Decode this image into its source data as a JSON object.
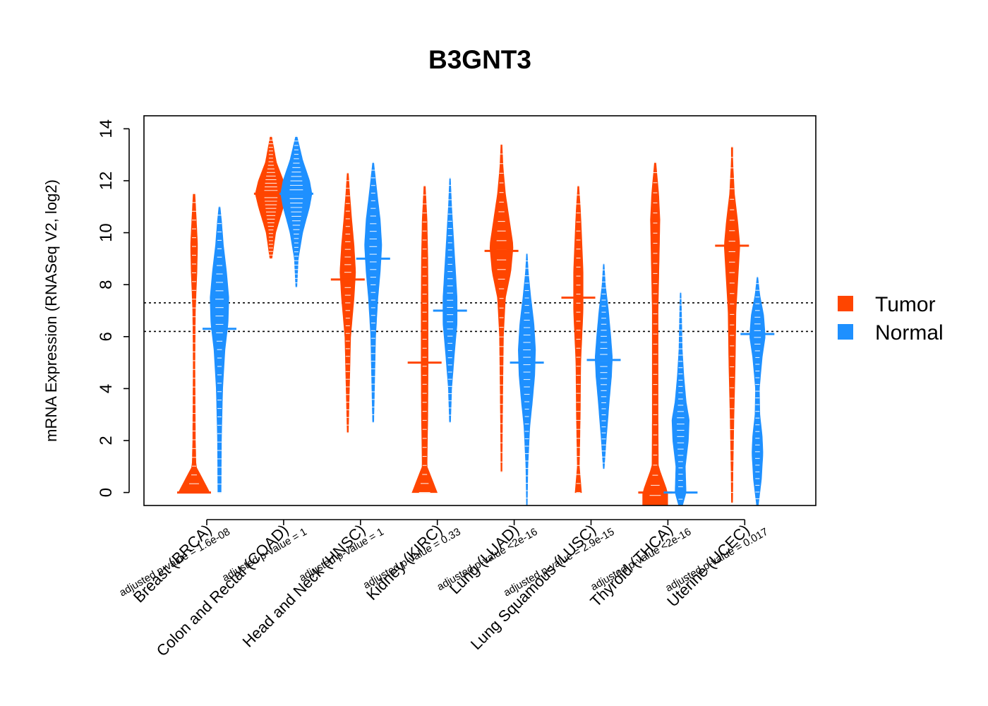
{
  "chart_data": {
    "type": "beanplot",
    "title": "B3GNT3",
    "ylabel": "mRNA Expression (RNASeq V2, log2)",
    "ylim": [
      -0.5,
      14.5
    ],
    "yticks": [
      0,
      2,
      4,
      6,
      8,
      10,
      12,
      14
    ],
    "reference_lines": [
      7.3,
      6.2
    ],
    "colors": {
      "Tumor": "#ff4500",
      "Normal": "#1e90ff"
    },
    "legend": {
      "placement": "right",
      "entries": [
        {
          "label": "Tumor",
          "color": "#ff4500"
        },
        {
          "label": "Normal",
          "color": "#1e90ff"
        }
      ]
    },
    "categories": [
      {
        "name": "Breast (BRCA)",
        "pvalue": "adjusted p-value = 1.6e-08"
      },
      {
        "name": "Colon and Rectal (COAD)",
        "pvalue": "adjusted p-value = 1"
      },
      {
        "name": "Head and Neck (HNSC)",
        "pvalue": "adjusted p-value = 1"
      },
      {
        "name": "Kidney (KIRC)",
        "pvalue": "adjusted p-value = 0.33"
      },
      {
        "name": "Lung (LUAD)",
        "pvalue": "adjusted p-value <2e-16"
      },
      {
        "name": "Lung Squamous (LUSC)",
        "pvalue": "adjusted p-value = 2.9e-15"
      },
      {
        "name": "Thyroid (THCA)",
        "pvalue": "adjusted p-value <2e-16"
      },
      {
        "name": "Uterine (UCEC)",
        "pvalue": "adjusted p-value = 0.017"
      }
    ],
    "series": [
      {
        "name": "Tumor",
        "groups": [
          {
            "min": 0,
            "max": 11.5,
            "median": 0,
            "density": [
              [
                0,
                1.0
              ],
              [
                1,
                0.12
              ],
              [
                2,
                0.08
              ],
              [
                3,
                0.07
              ],
              [
                5,
                0.05
              ],
              [
                7,
                0.08
              ],
              [
                8.5,
                0.18
              ],
              [
                9.5,
                0.22
              ],
              [
                10.5,
                0.14
              ],
              [
                11.5,
                0.05
              ]
            ]
          },
          {
            "min": 9.0,
            "max": 13.7,
            "median": 11.5,
            "density": [
              [
                9,
                0.06
              ],
              [
                10,
                0.3
              ],
              [
                11,
                0.8
              ],
              [
                11.5,
                1.0
              ],
              [
                12,
                0.8
              ],
              [
                12.7,
                0.35
              ],
              [
                13.7,
                0.04
              ]
            ]
          },
          {
            "min": 2.3,
            "max": 12.3,
            "median": 8.2,
            "density": [
              [
                2.3,
                0.03
              ],
              [
                4,
                0.1
              ],
              [
                6,
                0.18
              ],
              [
                7.5,
                0.4
              ],
              [
                8.5,
                0.5
              ],
              [
                9.5,
                0.4
              ],
              [
                10.5,
                0.25
              ],
              [
                11.5,
                0.12
              ],
              [
                12.3,
                0.03
              ]
            ]
          },
          {
            "min": 0,
            "max": 11.8,
            "median": 5.0,
            "density": [
              [
                0,
                0.8
              ],
              [
                1,
                0.15
              ],
              [
                3,
                0.2
              ],
              [
                5,
                0.22
              ],
              [
                7,
                0.22
              ],
              [
                9,
                0.2
              ],
              [
                10.5,
                0.15
              ],
              [
                11.8,
                0.04
              ]
            ]
          },
          {
            "min": 0.8,
            "max": 13.4,
            "median": 9.3,
            "density": [
              [
                0.8,
                0.03
              ],
              [
                3,
                0.06
              ],
              [
                6,
                0.12
              ],
              [
                7.5,
                0.25
              ],
              [
                8.5,
                0.6
              ],
              [
                9.5,
                0.75
              ],
              [
                10.5,
                0.5
              ],
              [
                11.5,
                0.25
              ],
              [
                12.5,
                0.1
              ],
              [
                13.4,
                0.03
              ]
            ]
          },
          {
            "min": 0,
            "max": 11.8,
            "median": 7.5,
            "density": [
              [
                0,
                0.2
              ],
              [
                1,
                0.06
              ],
              [
                3,
                0.12
              ],
              [
                5,
                0.15
              ],
              [
                7,
                0.3
              ],
              [
                8.5,
                0.3
              ],
              [
                10,
                0.2
              ],
              [
                11,
                0.12
              ],
              [
                11.8,
                0.03
              ]
            ]
          },
          {
            "min": -0.5,
            "max": 12.7,
            "median": 0,
            "density": [
              [
                0,
                0.8
              ],
              [
                1,
                0.2
              ],
              [
                3,
                0.18
              ],
              [
                5,
                0.18
              ],
              [
                7,
                0.18
              ],
              [
                9,
                0.25
              ],
              [
                10.5,
                0.3
              ],
              [
                11.5,
                0.22
              ],
              [
                12.7,
                0.04
              ]
            ]
          },
          {
            "min": -0.4,
            "max": 13.3,
            "median": 9.5,
            "density": [
              [
                -0.4,
                0.03
              ],
              [
                1,
                0.06
              ],
              [
                3,
                0.12
              ],
              [
                5,
                0.2
              ],
              [
                7,
                0.25
              ],
              [
                8.5,
                0.4
              ],
              [
                9.5,
                0.5
              ],
              [
                10.5,
                0.35
              ],
              [
                11.5,
                0.15
              ],
              [
                12.8,
                0.04
              ]
            ]
          }
        ]
      },
      {
        "name": "Normal",
        "groups": [
          {
            "min": 0,
            "max": 11.0,
            "median": 6.3,
            "density": [
              [
                0,
                0.1
              ],
              [
                2,
                0.12
              ],
              [
                4,
                0.2
              ],
              [
                5.5,
                0.35
              ],
              [
                6.5,
                0.55
              ],
              [
                7.5,
                0.6
              ],
              [
                8.5,
                0.45
              ],
              [
                9.5,
                0.25
              ],
              [
                10.5,
                0.12
              ],
              [
                11,
                0.03
              ]
            ]
          },
          {
            "min": 7.9,
            "max": 13.7,
            "median": 11.5,
            "density": [
              [
                7.9,
                0.03
              ],
              [
                9,
                0.12
              ],
              [
                10,
                0.4
              ],
              [
                11,
                0.85
              ],
              [
                11.5,
                1.0
              ],
              [
                12,
                0.85
              ],
              [
                12.8,
                0.4
              ],
              [
                13.7,
                0.04
              ]
            ]
          },
          {
            "min": 2.7,
            "max": 12.7,
            "median": 9.0,
            "density": [
              [
                2.7,
                0.03
              ],
              [
                4,
                0.08
              ],
              [
                6,
                0.15
              ],
              [
                7.5,
                0.3
              ],
              [
                8.5,
                0.45
              ],
              [
                9.5,
                0.55
              ],
              [
                10.5,
                0.45
              ],
              [
                11.5,
                0.25
              ],
              [
                12.7,
                0.03
              ]
            ]
          },
          {
            "min": 2.7,
            "max": 12.1,
            "median": 7.0,
            "density": [
              [
                2.7,
                0.03
              ],
              [
                4,
                0.1
              ],
              [
                5.5,
                0.3
              ],
              [
                6.5,
                0.45
              ],
              [
                7.5,
                0.45
              ],
              [
                8.5,
                0.35
              ],
              [
                9.5,
                0.25
              ],
              [
                11,
                0.1
              ],
              [
                12.1,
                0.02
              ]
            ]
          },
          {
            "min": -0.5,
            "max": 9.2,
            "median": 5.0,
            "density": [
              [
                -0.5,
                0.02
              ],
              [
                1,
                0.06
              ],
              [
                2.5,
                0.18
              ],
              [
                3.5,
                0.35
              ],
              [
                4.5,
                0.5
              ],
              [
                5.5,
                0.55
              ],
              [
                6.5,
                0.45
              ],
              [
                7.5,
                0.25
              ],
              [
                8.5,
                0.08
              ],
              [
                9.2,
                0.02
              ]
            ]
          },
          {
            "min": 0.9,
            "max": 8.8,
            "median": 5.1,
            "density": [
              [
                0.9,
                0.02
              ],
              [
                2,
                0.15
              ],
              [
                3.5,
                0.35
              ],
              [
                4.5,
                0.5
              ],
              [
                5.2,
                0.55
              ],
              [
                6,
                0.45
              ],
              [
                7,
                0.3
              ],
              [
                8,
                0.1
              ],
              [
                8.8,
                0.02
              ]
            ]
          },
          {
            "min": -0.5,
            "max": 7.7,
            "median": 0,
            "density": [
              [
                -0.5,
                0.12
              ],
              [
                0,
                0.35
              ],
              [
                1,
                0.3
              ],
              [
                2,
                0.5
              ],
              [
                2.8,
                0.55
              ],
              [
                3.5,
                0.35
              ],
              [
                4.5,
                0.2
              ],
              [
                5.5,
                0.1
              ],
              [
                7,
                0.05
              ],
              [
                7.7,
                0.02
              ]
            ]
          },
          {
            "min": -0.5,
            "max": 8.3,
            "median": 6.1,
            "density": [
              [
                -0.5,
                0.05
              ],
              [
                0.5,
                0.25
              ],
              [
                1.5,
                0.35
              ],
              [
                2.2,
                0.3
              ],
              [
                3,
                0.15
              ],
              [
                4,
                0.12
              ],
              [
                5.2,
                0.3
              ],
              [
                6,
                0.5
              ],
              [
                6.8,
                0.4
              ],
              [
                7.6,
                0.15
              ],
              [
                8.3,
                0.02
              ]
            ]
          }
        ]
      }
    ]
  }
}
